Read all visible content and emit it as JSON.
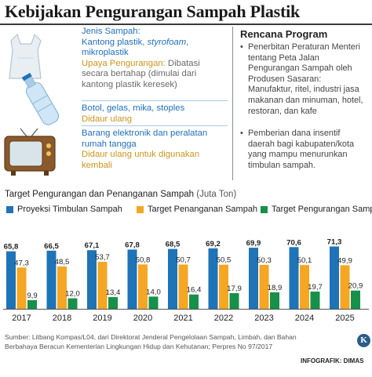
{
  "title": "Kebijakan Pengurangan Sampah Plastik",
  "info_items": [
    {
      "key": "Jenis Sampah:",
      "value_parts": [
        "Kantong plastik, ",
        "styrofoam",
        ",",
        "mikroplastik"
      ],
      "note_key": "Upaya Pengurangan:",
      "note_value": "Dibatasi secara bertahap (dimulai dari kantong plastik keresek)"
    },
    {
      "key": "Botol, gelas, mika, stoples",
      "value": "Didaur ulang"
    },
    {
      "key": "Barang elektronik dan peralatan rumah tangga",
      "value": "Didaur ulang untuk digunakan kembali"
    }
  ],
  "program": {
    "title": "Rencana Program",
    "bullets": [
      "Penerbitan Peraturan Menteri tentang Peta Jalan Pengurangan Sampah oleh Produsen Sasaran: Manufaktur, ritel, industri jasa makanan dan minuman, hotel, restoran, dan kafe",
      "Pemberian dana insentif daerah bagi kabupaten/kota yang mampu menurunkan timbulan sampah."
    ]
  },
  "chart_title": "Target Pengurangan dan Penanganan Sampah",
  "chart_unit": "(Juta Ton)",
  "legend": [
    {
      "label": "Proyeksi Timbulan Sampah",
      "color": "#1f73b7"
    },
    {
      "label": "Target Penanganan Sampah",
      "color": "#f5a623"
    },
    {
      "label": "Target Pengurangan Sampah",
      "color": "#17904a"
    }
  ],
  "chart_data": {
    "type": "bar",
    "title": "Target Pengurangan dan Penanganan Sampah (Juta Ton)",
    "categories": [
      "2017",
      "2018",
      "2019",
      "2020",
      "2021",
      "2022",
      "2023",
      "2024",
      "2025"
    ],
    "series": [
      {
        "name": "Proyeksi Timbulan Sampah",
        "color": "#1f73b7",
        "values": [
          65.8,
          66.5,
          67.1,
          67.8,
          68.5,
          69.2,
          69.9,
          70.6,
          71.3
        ]
      },
      {
        "name": "Target Penanganan Sampah",
        "color": "#f5a623",
        "values": [
          47.3,
          48.5,
          53.7,
          50.8,
          50.7,
          50.5,
          50.3,
          50.1,
          49.9
        ]
      },
      {
        "name": "Target Pengurangan Sampah",
        "color": "#17904a",
        "values": [
          9.9,
          12.0,
          13.4,
          14.0,
          16.4,
          17.9,
          18.9,
          19.7,
          20.9
        ]
      }
    ],
    "ylim": [
      0,
      75
    ],
    "grid": false,
    "legend": "top"
  },
  "source": "Sumber: Litbang Kompas/L04, dari Direktorat Jenderal Pengelolaan Sampah, Limbah, dan Bahan Berbahaya Beracun Kementerian Lingkungan Hidup dan Kehutanan; Perpres No 97/2017",
  "credit": "INFOGRAFIK: DIMAS",
  "logo_letter": "K"
}
